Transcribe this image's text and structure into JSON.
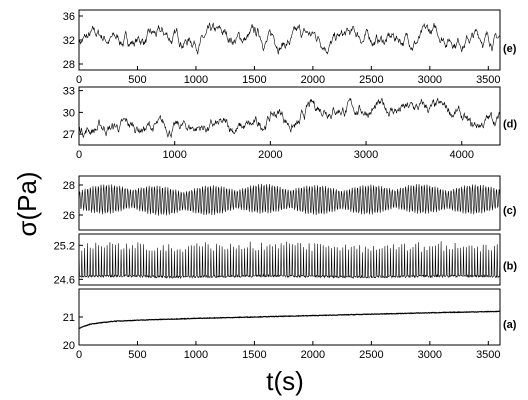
{
  "figure": {
    "ylabel": "σ(Pa)",
    "xlabel": "t(s)"
  },
  "chart_data": [
    {
      "type": "line",
      "panel_label": "(e)",
      "xlim": [
        0,
        3600
      ],
      "ylim": [
        27,
        37
      ],
      "xticks": [
        0,
        500,
        1000,
        1500,
        2000,
        2500,
        3000,
        3500
      ],
      "yticks": [
        28,
        32,
        36
      ],
      "series": [
        {
          "x": [
            0,
            200,
            400,
            600,
            800,
            1000,
            1200,
            1400,
            1600,
            1800,
            2000,
            2200,
            2400,
            2600,
            2800,
            3000,
            3200,
            3400,
            3600
          ],
          "values": [
            32.0,
            32.3,
            31.8,
            32.2,
            32.1,
            32.4,
            31.9,
            32.2,
            32.3,
            32.0,
            32.3,
            32.1,
            32.4,
            32.0,
            32.3,
            32.5,
            32.8,
            32.6,
            32.4
          ]
        }
      ]
    },
    {
      "type": "line",
      "panel_label": "(d)",
      "xlim": [
        0,
        4400
      ],
      "ylim": [
        25.5,
        33.5
      ],
      "xticks": [
        0,
        1000,
        2000,
        3000,
        4000
      ],
      "yticks": [
        27,
        30,
        33
      ],
      "series": [
        {
          "x": [
            0,
            250,
            500,
            750,
            1000,
            1250,
            1500,
            1750,
            1900,
            2000,
            2100,
            2200,
            2300,
            2400,
            2600,
            2800,
            3000,
            3200,
            3400,
            3600,
            3800,
            3950,
            4100,
            4250,
            4400
          ],
          "values": [
            27.8,
            27.9,
            28.0,
            27.9,
            27.8,
            28.0,
            27.9,
            27.8,
            28.1,
            29.5,
            30.0,
            28.5,
            28.0,
            30.5,
            30.8,
            30.6,
            30.4,
            30.5,
            30.3,
            30.5,
            30.2,
            30.0,
            27.6,
            28.8,
            29.2
          ]
        }
      ]
    },
    {
      "type": "line",
      "panel_label": "(c)",
      "ylim": [
        25,
        28.6
      ],
      "yticks": [
        26,
        28
      ],
      "series": [
        {
          "x": [
            0,
            400,
            800,
            1200,
            1600,
            2000,
            2400,
            2800,
            3200,
            3600
          ],
          "values": [
            27.0,
            27.1,
            26.9,
            27.0,
            27.1,
            27.0,
            27.0,
            27.1,
            27.0,
            27.1
          ]
        }
      ]
    },
    {
      "type": "line",
      "panel_label": "(b)",
      "ylim": [
        24.5,
        25.4
      ],
      "yticks": [
        24.6,
        25.2
      ],
      "series": [
        {
          "x": [
            0,
            400,
            800,
            1200,
            1600,
            2000,
            2400,
            2800,
            3200,
            3600
          ],
          "values": [
            24.65,
            24.66,
            24.64,
            24.65,
            24.66,
            24.65,
            24.64,
            24.65,
            24.66,
            24.65
          ]
        }
      ]
    },
    {
      "type": "line",
      "panel_label": "(a)",
      "xlim": [
        0,
        3600
      ],
      "ylim": [
        20,
        22
      ],
      "xticks": [
        0,
        500,
        1000,
        1500,
        2000,
        2500,
        3000,
        3500
      ],
      "yticks": [
        20,
        21
      ],
      "series": [
        {
          "x": [
            0,
            100,
            300,
            600,
            1000,
            1500,
            2000,
            2500,
            3000,
            3600
          ],
          "values": [
            20.6,
            20.75,
            20.85,
            20.9,
            20.95,
            21.0,
            21.05,
            21.1,
            21.15,
            21.2
          ]
        }
      ]
    }
  ]
}
